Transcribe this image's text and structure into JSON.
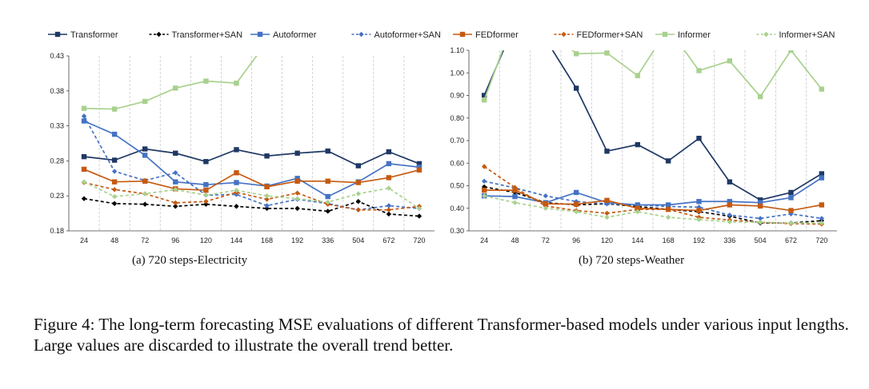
{
  "legend": [
    {
      "name": "Transformer",
      "color": "#1f3864",
      "dash": false,
      "marker": "square"
    },
    {
      "name": "Transformer+SAN",
      "color": "#000000",
      "dash": true,
      "marker": "diamond"
    },
    {
      "name": "Autoformer",
      "color": "#4472c4",
      "dash": false,
      "marker": "square"
    },
    {
      "name": "Autoformer+SAN",
      "color": "#4472c4",
      "dash": true,
      "marker": "diamond"
    },
    {
      "name": "FEDformer",
      "color": "#c55a11",
      "dash": false,
      "marker": "square"
    },
    {
      "name": "FEDformer+SAN",
      "color": "#c55a11",
      "dash": true,
      "marker": "diamond"
    },
    {
      "name": "Informer",
      "color": "#a9d18e",
      "dash": false,
      "marker": "square"
    },
    {
      "name": "Informer+SAN",
      "color": "#a9d18e",
      "dash": true,
      "marker": "diamond"
    }
  ],
  "chart_data": [
    {
      "type": "line",
      "subcaption": "(a) 720 steps-Electricity",
      "categories": [
        "24",
        "48",
        "72",
        "96",
        "120",
        "144",
        "168",
        "192",
        "336",
        "504",
        "672",
        "720"
      ],
      "y_ticks": [
        "0.18",
        "0.23",
        "0.28",
        "0.33",
        "0.38",
        "0.43"
      ],
      "ylim": [
        0.18,
        0.43
      ],
      "grid": "vertical dashed",
      "series": [
        {
          "name": "Transformer",
          "values": [
            0.286,
            0.281,
            0.297,
            0.291,
            0.279,
            0.296,
            0.287,
            0.291,
            0.294,
            0.273,
            0.293,
            0.276
          ]
        },
        {
          "name": "Transformer+SAN",
          "values": [
            0.226,
            0.219,
            0.218,
            0.215,
            0.218,
            0.215,
            0.212,
            0.212,
            0.208,
            0.222,
            0.204,
            0.201
          ]
        },
        {
          "name": "Autoformer",
          "values": [
            0.337,
            0.318,
            0.288,
            0.25,
            0.246,
            0.249,
            0.244,
            0.255,
            0.229,
            0.25,
            0.276,
            0.271
          ]
        },
        {
          "name": "Autoformer+SAN",
          "values": [
            0.344,
            0.265,
            0.252,
            0.263,
            0.231,
            0.232,
            0.216,
            0.225,
            0.219,
            0.21,
            0.216,
            0.212
          ]
        },
        {
          "name": "FEDformer",
          "values": [
            0.268,
            0.25,
            0.251,
            0.24,
            0.238,
            0.263,
            0.243,
            0.251,
            0.251,
            0.249,
            0.256,
            0.267
          ]
        },
        {
          "name": "FEDformer+SAN",
          "values": [
            0.249,
            0.239,
            0.233,
            0.22,
            0.222,
            0.235,
            0.225,
            0.234,
            0.218,
            0.21,
            0.21,
            0.215
          ]
        },
        {
          "name": "Informer",
          "values": [
            0.355,
            0.354,
            0.365,
            0.384,
            0.394,
            0.391,
            0.45,
            null,
            null,
            null,
            null,
            null
          ]
        },
        {
          "name": "Informer+SAN",
          "values": [
            0.25,
            0.229,
            0.233,
            0.239,
            0.231,
            0.238,
            0.23,
            0.226,
            0.221,
            0.233,
            0.241,
            0.212
          ]
        }
      ]
    },
    {
      "type": "line",
      "subcaption": "(b) 720 steps-Weather",
      "categories": [
        "24",
        "48",
        "72",
        "96",
        "120",
        "144",
        "168",
        "192",
        "336",
        "504",
        "672",
        "720"
      ],
      "y_ticks": [
        "0.30",
        "0.40",
        "0.50",
        "0.60",
        "0.70",
        "0.80",
        "0.90",
        "1.00",
        "1.10"
      ],
      "ylim": [
        0.3,
        1.1
      ],
      "grid": "vertical dashed",
      "series": [
        {
          "name": "Transformer",
          "values": [
            0.9,
            1.22,
            1.15,
            0.932,
            0.653,
            0.682,
            0.61,
            0.71,
            0.517,
            0.437,
            0.47,
            0.553
          ]
        },
        {
          "name": "Transformer+SAN",
          "values": [
            0.495,
            0.47,
            0.425,
            0.415,
            0.42,
            0.408,
            0.395,
            0.385,
            0.365,
            0.335,
            0.335,
            0.345
          ]
        },
        {
          "name": "Autoformer",
          "values": [
            0.455,
            0.452,
            0.425,
            0.47,
            0.425,
            0.415,
            0.415,
            0.43,
            0.43,
            0.425,
            0.447,
            0.535
          ]
        },
        {
          "name": "Autoformer+SAN",
          "values": [
            0.52,
            0.49,
            0.455,
            0.43,
            0.42,
            0.415,
            0.408,
            0.405,
            0.37,
            0.355,
            0.375,
            0.355
          ]
        },
        {
          "name": "FEDformer",
          "values": [
            0.48,
            0.48,
            0.42,
            0.418,
            0.435,
            0.4,
            0.395,
            0.39,
            0.415,
            0.41,
            0.39,
            0.415
          ]
        },
        {
          "name": "FEDformer+SAN",
          "values": [
            0.585,
            0.492,
            0.41,
            0.39,
            0.378,
            0.395,
            0.395,
            0.36,
            0.348,
            0.338,
            0.332,
            0.33
          ]
        },
        {
          "name": "Informer",
          "values": [
            0.88,
            1.25,
            1.2,
            1.085,
            1.088,
            0.988,
            1.2,
            1.01,
            1.053,
            0.895,
            1.1,
            0.928
          ]
        },
        {
          "name": "Informer+SAN",
          "values": [
            0.455,
            0.425,
            0.4,
            0.385,
            0.36,
            0.385,
            0.36,
            0.35,
            0.34,
            0.338,
            0.335,
            0.335
          ]
        }
      ]
    }
  ],
  "caption": "Figure 4: The long-term forecasting MSE evaluations of different Transformer-based models under various input lengths. Large values are discarded to illustrate the overall trend better."
}
